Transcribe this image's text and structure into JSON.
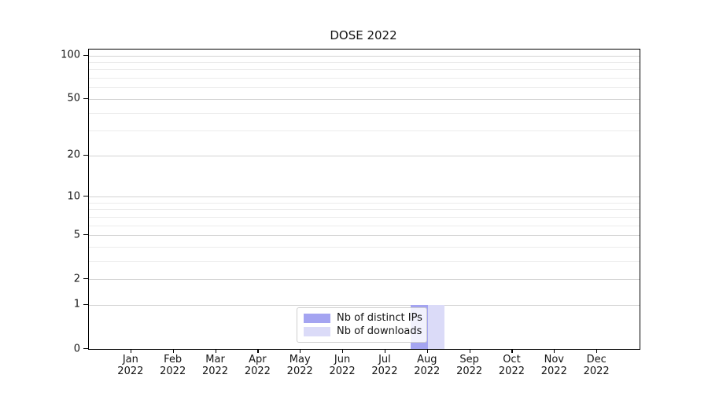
{
  "title": "DOSE 2022",
  "chart_data": {
    "type": "bar",
    "title": "DOSE 2022",
    "year_label": "2022",
    "categories": [
      "Jan 2022",
      "Feb 2022",
      "Mar 2022",
      "Apr 2022",
      "May 2022",
      "Jun 2022",
      "Jul 2022",
      "Aug 2022",
      "Sep 2022",
      "Oct 2022",
      "Nov 2022",
      "Dec 2022"
    ],
    "months": [
      "Jan",
      "Feb",
      "Mar",
      "Apr",
      "May",
      "Jun",
      "Jul",
      "Aug",
      "Sep",
      "Oct",
      "Nov",
      "Dec"
    ],
    "series": [
      {
        "name": "Nb of distinct IPs",
        "color": "#a4a4f1",
        "values": [
          0,
          0,
          0,
          0,
          0,
          0,
          0,
          1,
          0,
          0,
          0,
          0
        ]
      },
      {
        "name": "Nb of downloads",
        "color": "#dbdbf8",
        "values": [
          0,
          0,
          0,
          0,
          0,
          0,
          0,
          1,
          0,
          0,
          0,
          0
        ]
      }
    ],
    "yscale": "log1p",
    "ylim": [
      0,
      110
    ],
    "y_major_ticks": [
      100,
      50,
      20,
      10,
      5,
      2,
      1,
      0
    ],
    "y_minor_ticks": [
      90,
      80,
      70,
      60,
      40,
      30,
      9,
      8,
      7,
      6,
      4,
      3
    ],
    "grid": true,
    "legend_position": "lower-center-inside"
  },
  "colors": {
    "series1": "#a4a4f1",
    "series2": "#dbdbf8",
    "grid_major": "#d3d3d3",
    "grid_minor": "#ececec",
    "spine": "#000000",
    "text": "#141414",
    "legend_border": "#cfcfcf"
  }
}
